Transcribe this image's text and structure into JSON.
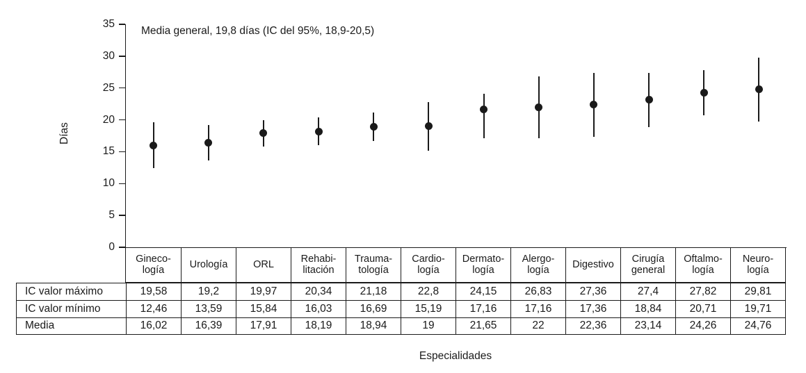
{
  "figure": {
    "annotation": "Media general, 19,8 días (IC del 95%, 18,9-20,5)",
    "y_axis_title": "Días",
    "x_axis_title": "Especialidades",
    "ink_color": "#1a1a1a",
    "background_color": "#ffffff"
  },
  "chart_data": {
    "type": "scatter",
    "subtype": "mean-with-confidence-interval-error-bars",
    "title": "",
    "annotation": "Media general, 19,8 días (IC del 95%, 18,9-20,5)",
    "xlabel": "Especialidades",
    "ylabel": "Días",
    "ylim": [
      0,
      35
    ],
    "yticks": [
      0,
      5,
      10,
      15,
      20,
      25,
      30,
      35
    ],
    "grid": false,
    "legend_position": "none",
    "marker": "filled-circle",
    "marker_color": "#1a1a1a",
    "categories": [
      "Ginecología",
      "Urología",
      "ORL",
      "Rehabilitación",
      "Traumatología",
      "Cardiología",
      "Dermatología",
      "Alergología",
      "Digestivo",
      "Cirugía general",
      "Oftalmología",
      "Neurología"
    ],
    "series": [
      {
        "name": "IC valor máximo",
        "values": [
          19.58,
          19.2,
          19.97,
          20.34,
          21.18,
          22.8,
          24.15,
          26.83,
          27.36,
          27.4,
          27.82,
          29.81
        ]
      },
      {
        "name": "IC valor mínimo",
        "values": [
          12.46,
          13.59,
          15.84,
          16.03,
          16.69,
          15.19,
          17.16,
          17.16,
          17.36,
          18.84,
          20.71,
          19.71
        ]
      },
      {
        "name": "Media",
        "values": [
          16.02,
          16.39,
          17.91,
          18.19,
          18.94,
          19,
          21.65,
          22,
          22.36,
          23.14,
          24.26,
          24.76
        ]
      }
    ]
  },
  "table": {
    "column_header_lines": [
      [
        "Gineco-",
        "logía"
      ],
      [
        "Urología"
      ],
      [
        "ORL"
      ],
      [
        "Rehabi-",
        "litación"
      ],
      [
        "Trauma-",
        "tología"
      ],
      [
        "Cardio-",
        "logía"
      ],
      [
        "Dermato-",
        "logía"
      ],
      [
        "Alergo-",
        "logía"
      ],
      [
        "Digestivo"
      ],
      [
        "Cirugía",
        "general"
      ],
      [
        "Oftalmo-",
        "logía"
      ],
      [
        "Neuro-",
        "logía"
      ]
    ],
    "rows": [
      {
        "label": "IC valor máximo",
        "values": [
          "19,58",
          "19,2",
          "19,97",
          "20,34",
          "21,18",
          "22,8",
          "24,15",
          "26,83",
          "27,36",
          "27,4",
          "27,82",
          "29,81"
        ]
      },
      {
        "label": "IC valor mínimo",
        "values": [
          "12,46",
          "13,59",
          "15,84",
          "16,03",
          "16,69",
          "15,19",
          "17,16",
          "17,16",
          "17,36",
          "18,84",
          "20,71",
          "19,71"
        ]
      },
      {
        "label": "Media",
        "values": [
          "16,02",
          "16,39",
          "17,91",
          "18,19",
          "18,94",
          "19",
          "21,65",
          "22",
          "22,36",
          "23,14",
          "24,26",
          "24,76"
        ]
      }
    ]
  }
}
